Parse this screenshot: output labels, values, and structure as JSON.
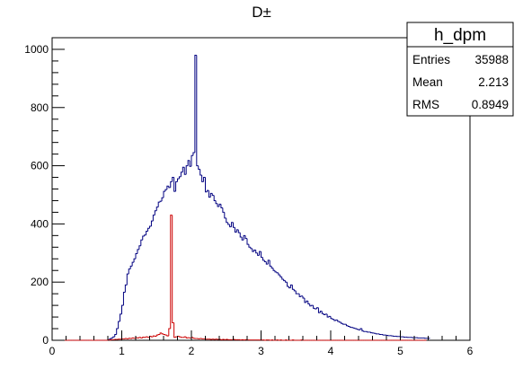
{
  "chart_data": {
    "type": "histogram",
    "title": "D±",
    "xlabel": "",
    "ylabel": "",
    "xlim": [
      0,
      6
    ],
    "ylim": [
      0,
      1040
    ],
    "x_ticks": [
      "0",
      "1",
      "2",
      "3",
      "4",
      "5",
      "6"
    ],
    "y_ticks": [
      "0",
      "200",
      "400",
      "600",
      "800",
      "1000"
    ],
    "grid": false,
    "bin_start": 0,
    "bin_width": 0.025,
    "series": [
      {
        "color": "#000080",
        "values": [
          0,
          0,
          0,
          0,
          0,
          0,
          0,
          0,
          0,
          0,
          0,
          0,
          0,
          0,
          0,
          0,
          0,
          0,
          0,
          0,
          0,
          0,
          0,
          0,
          0,
          0,
          0,
          0,
          0,
          0,
          0,
          0,
          2,
          5,
          8,
          12,
          20,
          40,
          65,
          90,
          120,
          165,
          190,
          228,
          245,
          255,
          268,
          280,
          298,
          312,
          325,
          345,
          358,
          362,
          375,
          385,
          392,
          410,
          430,
          445,
          458,
          475,
          478,
          490,
          512,
          518,
          530,
          525,
          545,
          560,
          512,
          545,
          555,
          562,
          578,
          595,
          570,
          600,
          618,
          598,
          635,
          645,
          980,
          600,
          588,
          568,
          545,
          560,
          510,
          515,
          492,
          505,
          498,
          480,
          470,
          460,
          468,
          455,
          440,
          420,
          405,
          398,
          390,
          405,
          388,
          372,
          380,
          370,
          355,
          345,
          360,
          350,
          330,
          320,
          315,
          305,
          310,
          300,
          292,
          305,
          285,
          275,
          270,
          262,
          275,
          255,
          248,
          240,
          235,
          232,
          225,
          218,
          210,
          205,
          200,
          185,
          180,
          190,
          175,
          170,
          160,
          160,
          150,
          152,
          145,
          130,
          135,
          125,
          118,
          120,
          110,
          108,
          112,
          95,
          100,
          92,
          88,
          90,
          80,
          82,
          75,
          72,
          68,
          70,
          65,
          62,
          58,
          55,
          55,
          50,
          48,
          45,
          44,
          42,
          40,
          38,
          36,
          40,
          32,
          30,
          30,
          28,
          28,
          26,
          25,
          24,
          22,
          22,
          20,
          20,
          18,
          18,
          17,
          16,
          16,
          15,
          14,
          14,
          13,
          13,
          12,
          12,
          11,
          11,
          10,
          10,
          10,
          9,
          9,
          9,
          8,
          8,
          8,
          8,
          7,
          7,
          7
        ]
      },
      {
        "color": "#cc0000",
        "values": [
          0,
          0,
          0,
          0,
          0,
          0,
          0,
          0,
          0,
          0,
          0,
          0,
          0,
          0,
          0,
          0,
          0,
          0,
          0,
          0,
          0,
          0,
          0,
          0,
          0,
          0,
          0,
          0,
          0,
          0,
          0,
          0,
          1,
          1,
          2,
          2,
          3,
          3,
          4,
          4,
          5,
          5,
          6,
          5,
          7,
          6,
          8,
          7,
          9,
          8,
          10,
          8,
          11,
          10,
          12,
          10,
          14,
          12,
          15,
          14,
          18,
          20,
          25,
          22,
          20,
          18,
          15,
          40,
          430,
          60,
          10,
          12,
          14,
          12,
          10,
          10,
          12,
          8,
          9,
          8,
          10,
          7,
          6,
          6,
          5,
          6,
          5,
          5,
          4,
          4,
          4,
          3,
          4,
          3,
          4,
          3,
          3,
          2,
          3,
          2,
          3,
          2,
          2,
          2,
          3,
          2,
          2,
          2,
          1,
          2,
          1,
          2,
          1,
          1,
          1,
          1,
          1,
          1,
          1,
          1,
          1,
          1,
          0,
          1,
          1,
          0,
          1,
          0,
          0,
          1,
          0,
          1,
          0,
          0,
          1,
          0,
          0,
          0,
          1,
          0,
          0,
          0,
          0,
          1,
          0,
          0,
          0,
          0,
          0,
          0,
          0,
          0,
          0,
          0,
          0,
          0,
          0,
          0,
          0,
          0,
          0,
          0,
          0,
          0,
          0,
          0,
          0,
          0,
          0,
          0,
          0,
          0,
          0,
          0,
          0,
          0,
          0,
          0,
          0,
          0,
          0,
          0,
          0,
          0,
          0,
          0,
          0,
          0,
          0,
          0,
          0,
          0,
          0,
          0,
          0,
          0,
          0,
          0,
          0,
          0,
          0,
          0,
          0,
          0,
          0,
          0,
          0,
          0,
          0,
          0,
          0,
          0,
          0,
          0,
          0
        ]
      }
    ]
  },
  "stats_box": {
    "name": "h_dpm",
    "rows": [
      {
        "label": "Entries",
        "value": "35988"
      },
      {
        "label": "Mean",
        "value": "2.213"
      },
      {
        "label": "RMS",
        "value": "0.8949"
      }
    ]
  }
}
